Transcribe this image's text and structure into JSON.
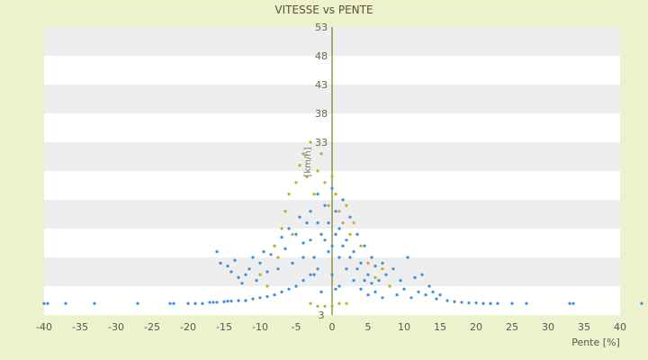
{
  "chart_data": {
    "type": "scatter",
    "title": "VITESSE vs PENTE",
    "xlabel": "Pente [%]",
    "ylabel": "[km/h]",
    "xlim": [
      -40,
      40
    ],
    "ylim": [
      3,
      53
    ],
    "x_ticks": [
      -40,
      -35,
      -30,
      -25,
      -20,
      -15,
      -10,
      -5,
      0,
      5,
      10,
      15,
      20,
      25,
      30,
      35,
      40
    ],
    "y_ticks": [
      3,
      8,
      13,
      18,
      23,
      28,
      33,
      38,
      43,
      48,
      53
    ],
    "y_tick_labels": [
      "3",
      "",
      "",
      "",
      "",
      "",
      "33",
      "38",
      "43",
      "48",
      "53"
    ],
    "grid": "horizontal bands",
    "colors": {
      "background": "#eef2cc",
      "plot_band_light": "#ffffff",
      "plot_band_dark": "#eeeeee",
      "series_main": "#3a8fd8",
      "series_secondary": "#b8b030",
      "axis": "#556600"
    },
    "series": [
      {
        "color": "#3a8fd8",
        "points": [
          [
            -40,
            5
          ],
          [
            -39.5,
            5
          ],
          [
            -37,
            5
          ],
          [
            -33,
            5
          ],
          [
            -27,
            5
          ],
          [
            -22.5,
            5
          ],
          [
            -22,
            5
          ],
          [
            -20,
            5
          ],
          [
            -19,
            5
          ],
          [
            -18,
            5
          ],
          [
            -17,
            5.2
          ],
          [
            -16.5,
            5.2
          ],
          [
            -16,
            5.2
          ],
          [
            -15,
            5.3
          ],
          [
            -14.5,
            5.4
          ],
          [
            -14,
            5.4
          ],
          [
            -13,
            5.5
          ],
          [
            -12,
            5.5
          ],
          [
            -11,
            5.8
          ],
          [
            -10,
            6
          ],
          [
            -9,
            6.2
          ],
          [
            -8,
            6.5
          ],
          [
            -7,
            7
          ],
          [
            -6,
            7.5
          ],
          [
            -5,
            8
          ],
          [
            -4,
            9
          ],
          [
            -3,
            10
          ],
          [
            -2,
            11
          ],
          [
            -16,
            14
          ],
          [
            -15.5,
            12
          ],
          [
            -14.5,
            11.5
          ],
          [
            -14,
            10.5
          ],
          [
            -13.5,
            12.5
          ],
          [
            -13,
            9.5
          ],
          [
            -12.5,
            8.5
          ],
          [
            -12,
            10
          ],
          [
            -11.5,
            11
          ],
          [
            -11,
            13
          ],
          [
            -10.5,
            9
          ],
          [
            -10,
            12
          ],
          [
            -9.5,
            14
          ],
          [
            -9,
            10.5
          ],
          [
            -8.5,
            13.5
          ],
          [
            -8,
            15
          ],
          [
            -7.5,
            11
          ],
          [
            -7,
            16.5
          ],
          [
            -6.5,
            14.5
          ],
          [
            -6,
            18
          ],
          [
            -5.5,
            12
          ],
          [
            -5,
            17
          ],
          [
            -4.5,
            20
          ],
          [
            -4,
            15.5
          ],
          [
            -3.5,
            19
          ],
          [
            -3,
            21
          ],
          [
            -2.5,
            13
          ],
          [
            -2,
            24
          ],
          [
            -1.5,
            17
          ],
          [
            -1,
            22
          ],
          [
            -0.5,
            19
          ],
          [
            0,
            25
          ],
          [
            0,
            15
          ],
          [
            0,
            10
          ],
          [
            0.5,
            21
          ],
          [
            1,
            18
          ],
          [
            1,
            13
          ],
          [
            1.5,
            23
          ],
          [
            2,
            16
          ],
          [
            2,
            11
          ],
          [
            2.5,
            20
          ],
          [
            3,
            14
          ],
          [
            3,
            9
          ],
          [
            3.5,
            17
          ],
          [
            4,
            12
          ],
          [
            4,
            7.5
          ],
          [
            4.5,
            15
          ],
          [
            5,
            10
          ],
          [
            5,
            6.5
          ],
          [
            5.5,
            13
          ],
          [
            6,
            11.5
          ],
          [
            6,
            7
          ],
          [
            6.5,
            9
          ],
          [
            7,
            12
          ],
          [
            7,
            6
          ],
          [
            7.5,
            10
          ],
          [
            8,
            8
          ],
          [
            8.5,
            11
          ],
          [
            9,
            6.5
          ],
          [
            9.5,
            9
          ],
          [
            10,
            7.5
          ],
          [
            10.5,
            13
          ],
          [
            11,
            6
          ],
          [
            11.5,
            9.5
          ],
          [
            12,
            7
          ],
          [
            12.5,
            10
          ],
          [
            13,
            6.5
          ],
          [
            13.5,
            8
          ],
          [
            14,
            7
          ],
          [
            14.5,
            5.8
          ],
          [
            15,
            6.5
          ],
          [
            16,
            5.5
          ],
          [
            17,
            5.3
          ],
          [
            18,
            5.2
          ],
          [
            19,
            5.1
          ],
          [
            20,
            5.1
          ],
          [
            21,
            5
          ],
          [
            22,
            5
          ],
          [
            23,
            5
          ],
          [
            25,
            5
          ],
          [
            27,
            5
          ],
          [
            33,
            5
          ],
          [
            33.5,
            5
          ],
          [
            43,
            5
          ],
          [
            -2,
            19
          ],
          [
            -1,
            16
          ],
          [
            -0.5,
            14
          ],
          [
            0.5,
            17
          ],
          [
            1.5,
            15
          ],
          [
            -3,
            16
          ],
          [
            -4,
            13
          ],
          [
            -2.5,
            10
          ],
          [
            2.5,
            13
          ],
          [
            3.5,
            11
          ],
          [
            1,
            8
          ],
          [
            -1.5,
            7
          ],
          [
            0.5,
            7.5
          ],
          [
            4.5,
            9
          ],
          [
            5.5,
            8.5
          ]
        ]
      },
      {
        "color": "#b8b030",
        "points": [
          [
            -8,
            15
          ],
          [
            -7.5,
            13
          ],
          [
            -7,
            18
          ],
          [
            -6.5,
            21
          ],
          [
            -6,
            24
          ],
          [
            -5.5,
            17
          ],
          [
            -5,
            26
          ],
          [
            -4.5,
            29
          ],
          [
            -4,
            31
          ],
          [
            -3.5,
            27
          ],
          [
            -3,
            33
          ],
          [
            -2.5,
            24
          ],
          [
            -2,
            28
          ],
          [
            -1.5,
            31
          ],
          [
            -1,
            26
          ],
          [
            -0.5,
            22
          ],
          [
            0,
            27
          ],
          [
            0.5,
            24
          ],
          [
            1,
            21
          ],
          [
            1.5,
            19
          ],
          [
            2,
            22
          ],
          [
            2.5,
            17
          ],
          [
            3,
            19
          ],
          [
            4,
            15
          ],
          [
            5,
            12
          ],
          [
            6,
            9.5
          ],
          [
            7,
            11
          ],
          [
            8,
            8
          ],
          [
            -3,
            5
          ],
          [
            -2,
            4.5
          ],
          [
            -1,
            4.5
          ],
          [
            0,
            4.5
          ],
          [
            1,
            5
          ],
          [
            2,
            5
          ],
          [
            -9,
            8
          ],
          [
            -10,
            10
          ]
        ]
      }
    ]
  }
}
